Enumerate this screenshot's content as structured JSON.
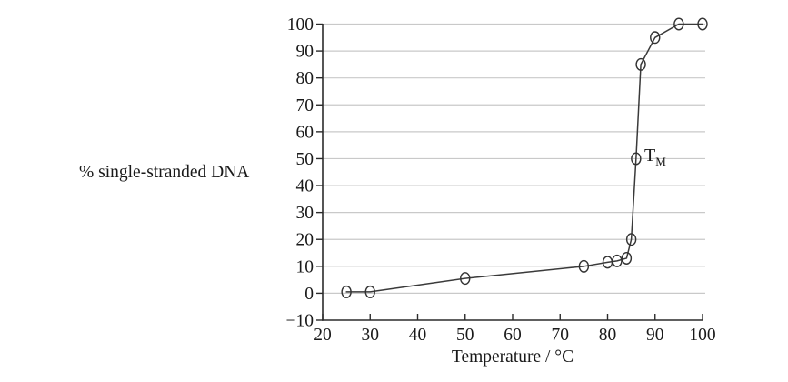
{
  "figure": {
    "background": "#ffffff"
  },
  "chart_data": {
    "type": "line",
    "title": "",
    "xlabel": "Temperature / °C",
    "ylabel": "% single-stranded DNA",
    "x": [
      25,
      30,
      50,
      75,
      80,
      82,
      84,
      85,
      86,
      87,
      90,
      95,
      100
    ],
    "y": [
      0.5,
      0.5,
      5.5,
      10,
      11.5,
      12,
      13,
      20,
      50,
      85,
      95,
      100,
      100
    ],
    "marker": "open-circle",
    "xlim": [
      20,
      100
    ],
    "ylim": [
      -10,
      100
    ],
    "x_ticks": {
      "values": [
        20,
        30,
        40,
        50,
        60,
        70,
        80,
        90,
        100
      ],
      "labels": [
        "20",
        "30",
        "40",
        "50",
        "60",
        "70",
        "80",
        "90",
        "100"
      ]
    },
    "y_ticks": {
      "values": [
        -10,
        0,
        10,
        20,
        30,
        40,
        50,
        60,
        70,
        80,
        90,
        100
      ],
      "labels": [
        "−10",
        "0",
        "10",
        "20",
        "30",
        "40",
        "50",
        "60",
        "70",
        "80",
        "90",
        "100"
      ]
    },
    "grid_at": [
      0,
      10,
      20,
      30,
      40,
      50,
      60,
      70,
      80,
      90,
      100
    ],
    "grid": "horizontal",
    "legend": "none",
    "annotation": {
      "text": "T",
      "subscript": "M",
      "x": 86,
      "y": 50
    },
    "colors": {
      "line": "#3a3a3a",
      "marker_stroke": "#333333",
      "grid": "#c9c9c9",
      "axis": "#2b2b2b",
      "text": "#1a1a1a"
    }
  }
}
